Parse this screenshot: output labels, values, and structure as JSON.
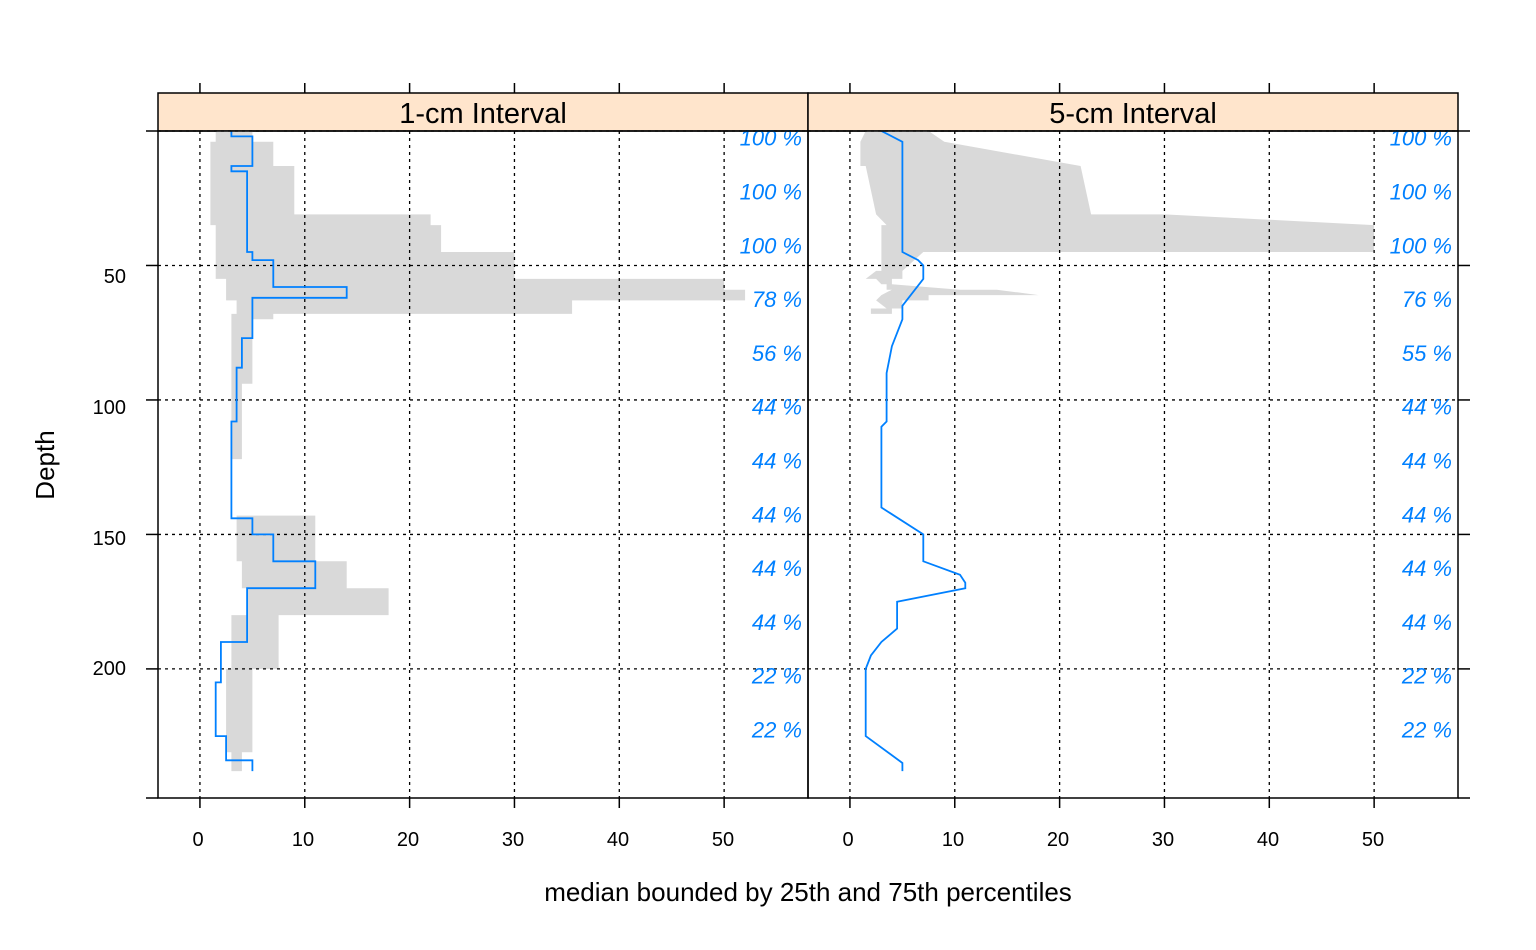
{
  "colors": {
    "strip_fill": "#FFE5CC",
    "band_fill": "#D9D9D9",
    "median_line": "#0080FF",
    "pct_text": "#0080FF",
    "grid": "#000000"
  },
  "chart_data": {
    "type": "line",
    "xlabel": "median bounded by 25th and 75th percentiles",
    "ylabel": "Depth",
    "xlim": [
      -4,
      58
    ],
    "ylim": [
      0,
      248
    ],
    "y_reversed": true,
    "x_ticks": [
      0,
      10,
      20,
      30,
      40,
      50
    ],
    "y_ticks": [
      50,
      100,
      150,
      200
    ],
    "grid": true,
    "panels": [
      {
        "title": "1-cm Interval",
        "series": [
          {
            "role": "band",
            "depth": [
              0,
              4,
              4,
              13,
              13,
              31,
              31,
              35,
              35,
              45,
              45,
              52,
              52,
              55,
              55,
              57,
              57,
              59,
              59,
              61,
              61,
              63,
              63,
              66,
              66,
              68,
              68,
              70,
              70,
              77,
              77,
              85,
              85,
              94,
              94,
              108,
              108,
              122,
              122,
              143,
              143,
              150,
              150,
              160,
              160,
              170,
              170,
              180,
              180,
              192,
              192,
              200,
              200,
              230,
              230,
              231,
              231,
              232,
              232,
              238,
              238,
              232,
              232,
              231,
              231,
              230,
              230,
              200,
              200,
              192,
              192,
              180,
              180,
              170,
              170,
              160,
              160,
              150,
              150,
              143,
              143,
              122,
              122,
              108,
              108,
              94,
              94,
              85,
              85,
              77,
              77,
              70,
              70,
              68,
              68,
              66,
              66,
              63,
              63,
              61,
              61,
              59,
              59,
              57,
              57,
              55,
              55,
              52,
              52,
              45,
              45,
              35,
              35,
              31,
              31,
              13,
              13,
              4,
              4,
              0
            ],
            "upper": [
              5,
              5,
              7,
              7,
              9,
              9,
              22,
              22,
              23,
              23,
              30,
              30,
              30,
              30,
              50,
              50,
              50,
              50,
              52,
              52,
              52,
              52,
              35.5,
              35.5,
              35.5,
              35.5,
              7,
              7,
              5,
              5,
              5,
              5,
              5,
              5,
              4,
              4,
              4,
              4,
              4,
              4,
              11,
              11,
              11,
              11,
              14,
              14,
              18,
              18,
              7.5,
              7.5,
              7.5,
              7.5,
              5,
              5,
              5,
              5,
              4,
              4,
              4,
              4
            ],
            "lower": [
              1.5,
              1.5,
              1,
              1,
              1,
              1,
              1,
              1,
              1.5,
              1.5,
              1.5,
              1.5,
              1.5,
              1.5,
              2.5,
              2.5,
              2.5,
              2.5,
              2.5,
              2.5,
              2.5,
              2.5,
              3.5,
              3.5,
              3.5,
              3.5,
              3,
              3,
              3,
              3,
              3,
              3,
              3,
              3,
              3,
              3,
              3,
              3,
              4,
              4,
              3.5,
              3.5,
              3.5,
              3.5,
              4,
              4,
              4.5,
              4.5,
              3,
              3,
              3,
              3,
              2.5,
              2.5,
              2.5,
              2.5,
              3,
              3,
              3,
              3
            ]
          },
          {
            "role": "median",
            "depth": [
              0,
              2,
              2,
              13,
              13,
              15,
              15,
              45,
              45,
              48,
              48,
              58,
              58,
              62,
              62,
              77,
              77,
              88,
              88,
              108,
              108,
              110,
              110,
              144,
              144,
              150,
              150,
              160,
              160,
              170,
              170,
              190,
              190,
              205,
              205,
              225,
              225,
              234,
              234,
              238
            ],
            "value": [
              3,
              3,
              5,
              5,
              3,
              3,
              4.5,
              4.5,
              5,
              5,
              7,
              7,
              14,
              14,
              5,
              5,
              4,
              4,
              3.5,
              3.5,
              3,
              3,
              3,
              3,
              5,
              5,
              7,
              7,
              11,
              11,
              4.5,
              4.5,
              2,
              2,
              1.5,
              1.5,
              2.5,
              2.5,
              5,
              5
            ]
          }
        ]
      },
      {
        "title": "5-cm Interval",
        "series": [
          {
            "role": "band",
            "depth": [
              0,
              4,
              4,
              13,
              13,
              31,
              31,
              35,
              35,
              45,
              45,
              52,
              52,
              55,
              55,
              57,
              57,
              59,
              59,
              61,
              61,
              63,
              63,
              66,
              66,
              68,
              68,
              70,
              70,
              77,
              77,
              85,
              85,
              94,
              94,
              108,
              108,
              122,
              122,
              143,
              143,
              150,
              150,
              160,
              160,
              170,
              170,
              180,
              180,
              192,
              192,
              200,
              200,
              230,
              230,
              231,
              231,
              232,
              232,
              238,
              238,
              232,
              232,
              231,
              231,
              230,
              230,
              200,
              200,
              192,
              192,
              180,
              180,
              170,
              170,
              160,
              160,
              150,
              150,
              143,
              143,
              122,
              122,
              108,
              108,
              94,
              94,
              85,
              85,
              77,
              77,
              70,
              70,
              68,
              68,
              66,
              66,
              63,
              63,
              61,
              61,
              59,
              59,
              57,
              57,
              55,
              55,
              52,
              52,
              45,
              45,
              35,
              35,
              31,
              31,
              13,
              13,
              4,
              4,
              0
            ],
            "upper": [
              7.5,
              9,
              9,
              22,
              22,
              23,
              30,
              50,
              50,
              50,
              7,
              5,
              5,
              5,
              4,
              4,
              4,
              10.5,
              14,
              18,
              7.5,
              7.5,
              5,
              5,
              4,
              4
            ],
            "lower": [
              1.5,
              1,
              1,
              1,
              1.5,
              2.5,
              2.5,
              3.5,
              3,
              3,
              3,
              3,
              2.5,
              1.5,
              2.5,
              3,
              3.5,
              3.5,
              4,
              3,
              3,
              2.5,
              2.5,
              3.5,
              2,
              2
            ]
          },
          {
            "role": "median",
            "depth": [
              0,
              4,
              13,
              45,
              48,
              50,
              55,
              65,
              70,
              80,
              90,
              108,
              110,
              140,
              150,
              160,
              165,
              168,
              170,
              175,
              185,
              190,
              195,
              200,
              205,
              225,
              235,
              238
            ],
            "value": [
              3,
              5,
              5,
              5,
              6.5,
              7,
              7,
              5,
              5,
              4,
              3.5,
              3.5,
              3,
              3,
              7,
              7,
              10.5,
              11,
              11,
              4.5,
              4.5,
              3,
              2,
              1.5,
              1.5,
              1.5,
              5,
              5
            ]
          }
        ]
      }
    ],
    "pct_labels": [
      {
        "depth": 2.5,
        "p1": "100 %",
        "p5": "100 %"
      },
      {
        "depth": 22.5,
        "p1": "100 %",
        "p5": "100 %"
      },
      {
        "depth": 42.5,
        "p1": "100 %",
        "p5": "100 %"
      },
      {
        "depth": 62.5,
        "p1": "78 %",
        "p5": "76 %"
      },
      {
        "depth": 82.5,
        "p1": "56 %",
        "p5": "55 %"
      },
      {
        "depth": 102.5,
        "p1": "44 %",
        "p5": "44 %"
      },
      {
        "depth": 122.5,
        "p1": "44 %",
        "p5": "44 %"
      },
      {
        "depth": 142.5,
        "p1": "44 %",
        "p5": "44 %"
      },
      {
        "depth": 162.5,
        "p1": "44 %",
        "p5": "44 %"
      },
      {
        "depth": 182.5,
        "p1": "44 %",
        "p5": "44 %"
      },
      {
        "depth": 202.5,
        "p1": "22 %",
        "p5": "22 %"
      },
      {
        "depth": 222.5,
        "p1": "22 %",
        "p5": "22 %"
      }
    ]
  }
}
